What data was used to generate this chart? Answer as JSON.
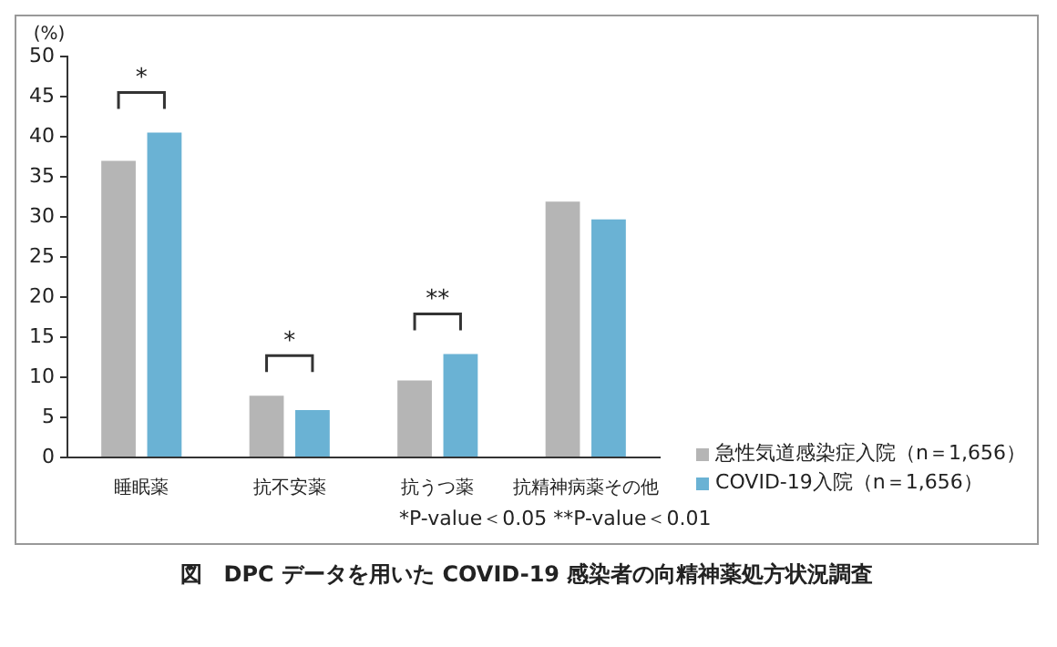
{
  "chart_data": {
    "type": "bar",
    "title": "図　DPC データを用いた COVID-19 感染者の向精神薬処方状況調査",
    "ylabel": "(%)",
    "categories": [
      "睡眠薬",
      "抗不安薬",
      "抗うつ薬",
      "抗精神病薬その他"
    ],
    "series": [
      {
        "name": "急性気道感染症入院（n＝1,656）",
        "color": "#b5b5b5",
        "values": [
          37,
          7.7,
          9.6,
          31.9
        ]
      },
      {
        "name": "COVID-19入院（n＝1,656）",
        "color": "#6ab2d4",
        "values": [
          40.5,
          5.9,
          12.9,
          29.7
        ]
      }
    ],
    "ylim": [
      0,
      50
    ],
    "yticks": [
      0,
      5,
      10,
      15,
      20,
      25,
      30,
      35,
      40,
      45,
      50
    ],
    "grid": false,
    "legend": "bottom right",
    "annotations": [
      "*",
      "*",
      "**",
      "*P-value＜0.05  **P-value＜0.01"
    ]
  }
}
